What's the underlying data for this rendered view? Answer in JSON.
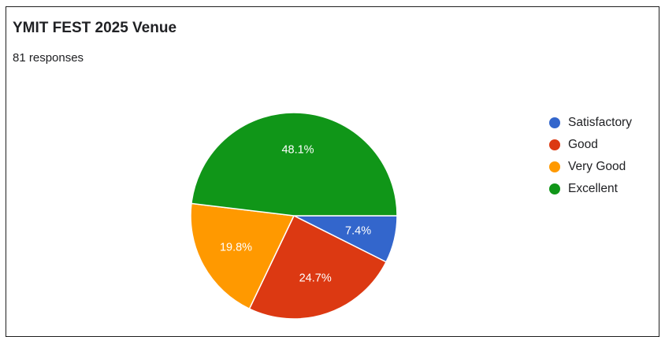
{
  "title": "YMIT FEST 2025 Venue",
  "subtitle": "81 responses",
  "chart_data": {
    "type": "pie",
    "title": "YMIT FEST 2025 Venue",
    "legend_position": "right",
    "slices": [
      {
        "label": "Satisfactory",
        "value": 7.4,
        "display": "7.4%",
        "color": "#3366cc"
      },
      {
        "label": "Good",
        "value": 24.7,
        "display": "24.7%",
        "color": "#dc3912"
      },
      {
        "label": "Very Good",
        "value": 19.8,
        "display": "19.8%",
        "color": "#ff9900"
      },
      {
        "label": "Excellent",
        "value": 48.1,
        "display": "48.1%",
        "color": "#109618"
      }
    ]
  }
}
